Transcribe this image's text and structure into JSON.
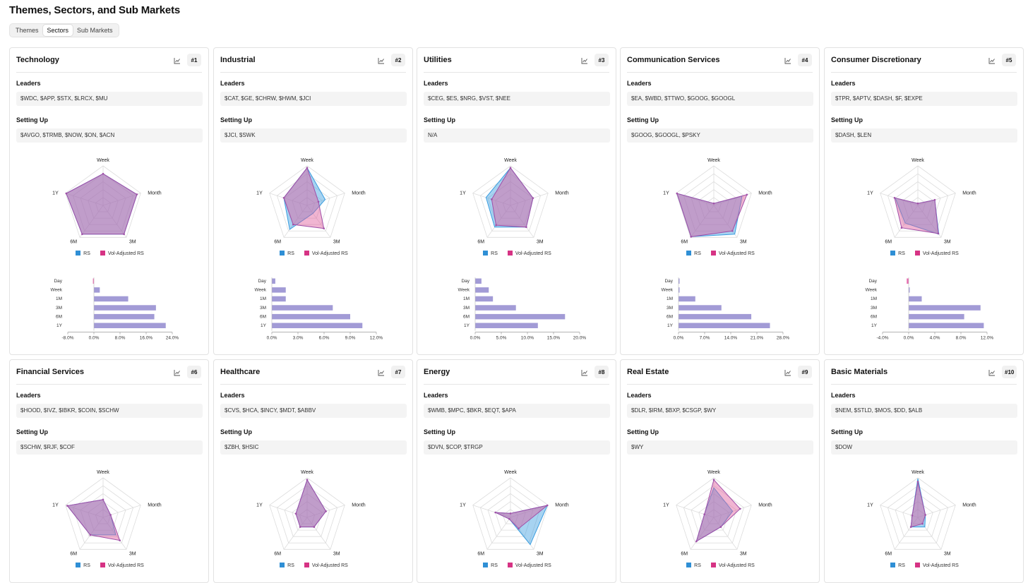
{
  "page_title": "Themes, Sectors, and Sub Markets",
  "tabs": [
    {
      "label": "Themes",
      "active": false
    },
    {
      "label": "Sectors",
      "active": true
    },
    {
      "label": "Sub Markets",
      "active": false
    }
  ],
  "common": {
    "leaders_label": "Leaders",
    "setting_up_label": "Setting Up",
    "chart_icon": "line-chart-icon",
    "radar_axes": [
      "Week",
      "Month",
      "3M",
      "6M",
      "1Y"
    ],
    "legend": [
      {
        "label": "RS",
        "color": "#2f8fd5"
      },
      {
        "label": "Vol-Adjusted RS",
        "color": "#d63384"
      }
    ],
    "bar_categories": [
      "Day",
      "Week",
      "1M",
      "3M",
      "6M",
      "1Y"
    ],
    "colors": {
      "bar": "#a29bd6",
      "bar_negative": "#e76fb1",
      "rs": "#2f8fd5",
      "vol_adj": "#d63384",
      "overlap": "#9a86c8"
    }
  },
  "sectors": [
    {
      "name": "Technology",
      "rank": "#1",
      "leaders": "$WDC, $APP, $STX, $LRCX, $MU",
      "setting_up": "$AVGO, $TRMB, $NOW, $ON, $ACN",
      "rs": [
        0.8,
        0.9,
        0.9,
        0.9,
        0.98
      ],
      "vol_adj": [
        0.8,
        0.9,
        0.9,
        0.9,
        0.98
      ],
      "bars": [
        -0.3,
        1.8,
        10.5,
        19.0,
        18.5,
        22.0
      ],
      "xticks": [
        "-8.0%",
        "0.0%",
        "8.0%",
        "16.0%",
        "24.0%"
      ],
      "xmin": -8,
      "xmax": 24
    },
    {
      "name": "Industrial",
      "rank": "#2",
      "leaders": "$CAT, $GE, $CHRW, $HWM, $JCI",
      "setting_up": "$JCI, $SWK",
      "rs": [
        0.95,
        0.48,
        0.25,
        0.75,
        0.62
      ],
      "vol_adj": [
        0.95,
        0.3,
        0.72,
        0.6,
        0.62
      ],
      "bars": [
        0.4,
        1.6,
        1.6,
        7.0,
        9.0,
        10.4
      ],
      "xticks": [
        "0.0%",
        "3.0%",
        "6.0%",
        "9.0%",
        "12.0%"
      ],
      "xmin": 0,
      "xmax": 12
    },
    {
      "name": "Utilities",
      "rank": "#3",
      "leaders": "$CEG, $ES, $NRG, $VST, $NEE",
      "setting_up": "N/A",
      "rs": [
        0.95,
        0.6,
        0.68,
        0.68,
        0.65
      ],
      "vol_adj": [
        0.95,
        0.6,
        0.68,
        0.62,
        0.5
      ],
      "bars": [
        1.2,
        2.6,
        3.4,
        7.8,
        17.2,
        12.0
      ],
      "xticks": [
        "0.0%",
        "5.0%",
        "10.0%",
        "15.0%",
        "20.0%"
      ],
      "xmin": 0,
      "xmax": 20
    },
    {
      "name": "Communication Services",
      "rank": "#4",
      "leaders": "$EA, $WBD, $TTWO, $GOOG, $GOOGL",
      "setting_up": "$GOOG, $GOOGL, $PSKY",
      "rs": [
        0.05,
        0.75,
        0.9,
        0.98,
        0.98
      ],
      "vol_adj": [
        0.05,
        0.88,
        0.8,
        0.98,
        0.98
      ],
      "bars": [
        0.2,
        0.2,
        4.5,
        11.5,
        19.5,
        24.5
      ],
      "xticks": [
        "0.0%",
        "7.0%",
        "14.0%",
        "21.0%",
        "28.0%"
      ],
      "xmin": 0,
      "xmax": 28
    },
    {
      "name": "Consumer Discretionary",
      "rank": "#5",
      "leaders": "$TPR, $APTV, $DASH, $F, $EXPE",
      "setting_up": "$DASH, $LEN",
      "rs": [
        0.05,
        0.45,
        0.9,
        0.55,
        0.6
      ],
      "vol_adj": [
        0.05,
        0.45,
        0.88,
        0.7,
        0.62
      ],
      "bars": [
        -0.3,
        0.1,
        2.0,
        11.0,
        8.5,
        11.5
      ],
      "xticks": [
        "-4.0%",
        "0.0%",
        "4.0%",
        "8.0%",
        "12.0%"
      ],
      "xmin": -4,
      "xmax": 12
    },
    {
      "name": "Financial Services",
      "rank": "#6",
      "leaders": "$HOOD, $IVZ, $IBKR, $COIN, $SCHW",
      "setting_up": "$SCHW, $RJF, $COF",
      "rs": [
        0.45,
        0.2,
        0.55,
        0.55,
        0.95
      ],
      "vol_adj": [
        0.45,
        0.2,
        0.72,
        0.55,
        0.95
      ]
    },
    {
      "name": "Healthcare",
      "rank": "#7",
      "leaders": "$CVS, $HCA, $INCY, $MDT, $ABBV",
      "setting_up": "$ZBH, $HSIC",
      "rs": [
        0.95,
        0.5,
        0.3,
        0.3,
        0.3
      ],
      "vol_adj": [
        0.95,
        0.5,
        0.3,
        0.3,
        0.3
      ]
    },
    {
      "name": "Energy",
      "rank": "#8",
      "leaders": "$WMB, $MPC, $BKR, $EQT, $APA",
      "setting_up": "$DVN, $COP, $TRGP",
      "rs": [
        0.1,
        0.98,
        0.85,
        0.05,
        0.4
      ],
      "vol_adj": [
        0.1,
        0.98,
        0.35,
        0.05,
        0.4
      ]
    },
    {
      "name": "Real Estate",
      "rank": "#9",
      "leaders": "$DLR, $IRM, $BXP, $CSGP, $WY",
      "setting_up": "$WY",
      "rs": [
        0.75,
        0.5,
        0.3,
        0.75,
        0.25
      ],
      "vol_adj": [
        0.95,
        0.7,
        0.3,
        0.75,
        0.25
      ]
    },
    {
      "name": "Basic Materials",
      "rank": "#10",
      "leaders": "$NEM, $STLD, $MOS, $DD, $ALB",
      "setting_up": "$DOW",
      "rs": [
        0.98,
        0.2,
        0.3,
        0.3,
        0.15
      ],
      "vol_adj": [
        0.9,
        0.2,
        0.2,
        0.3,
        0.15
      ]
    }
  ]
}
